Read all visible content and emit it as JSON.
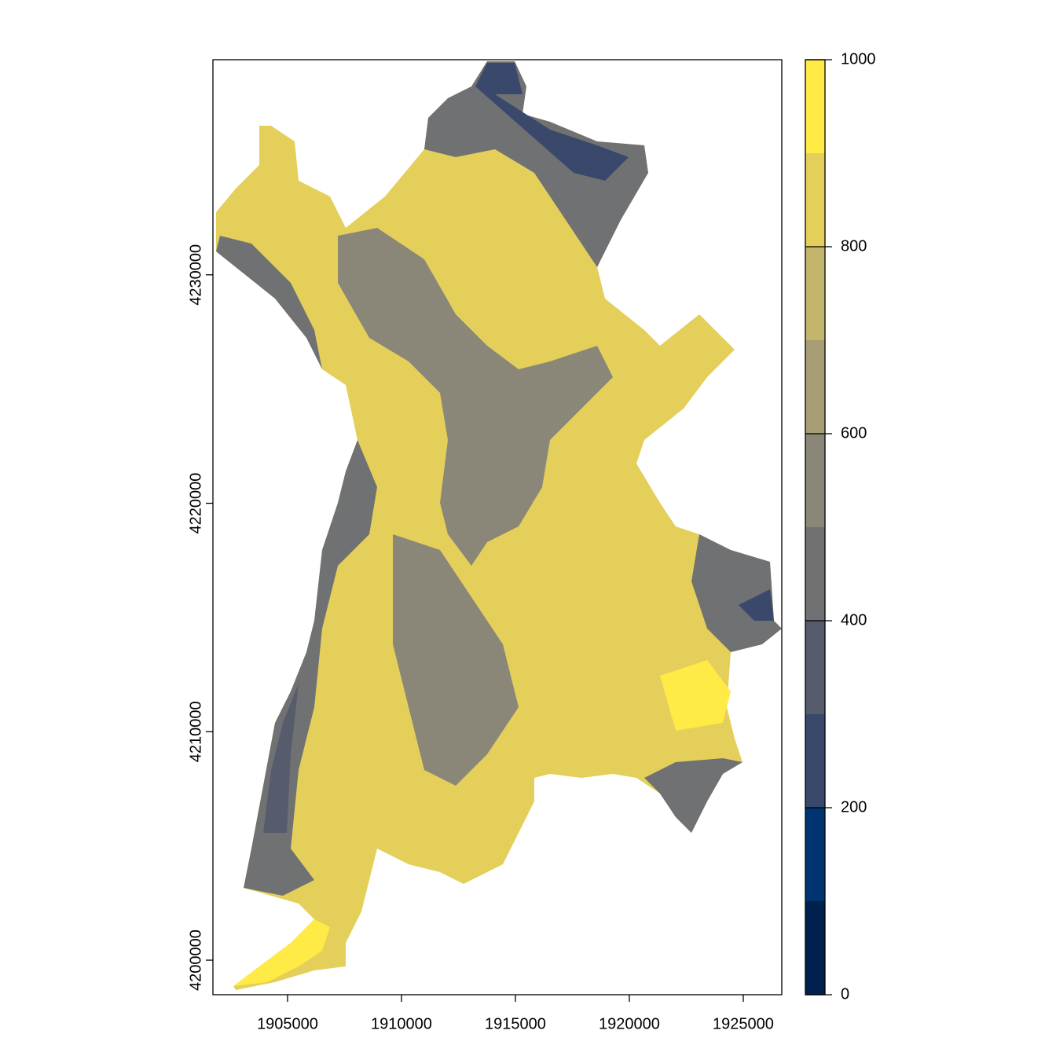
{
  "chart_data": {
    "type": "raster",
    "xlim": [
      1901724,
      1926690
    ],
    "xticks": [
      1905000,
      1910000,
      1915000,
      1920000,
      1925000
    ],
    "ylim": [
      4198488,
      4239416
    ],
    "yticks": [
      4200000,
      4210000,
      4220000,
      4230000
    ],
    "legend": {
      "breaks": [
        0,
        100,
        200,
        300,
        400,
        500,
        600,
        700,
        800,
        900,
        1000
      ],
      "colors": [
        "#00204D",
        "#00336F",
        "#39486B",
        "#575C6D",
        "#707173",
        "#8A8779",
        "#A69D75",
        "#C4B56C",
        "#E4CF5B",
        "#FFEA46"
      ],
      "ticks": [
        0,
        200,
        400,
        600,
        800,
        1000
      ]
    }
  }
}
